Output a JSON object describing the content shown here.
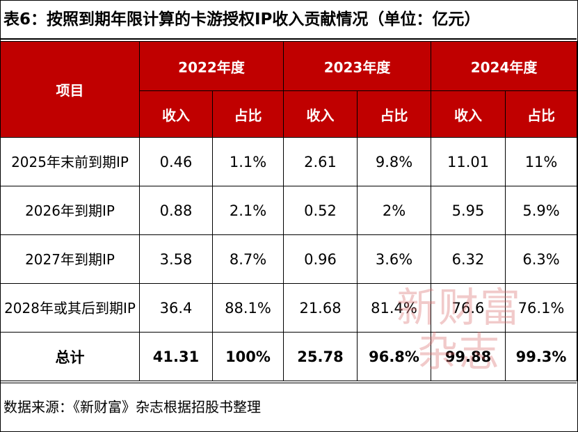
{
  "title": "表6：按照到期年限计算的卡游授权IP收入贡献情况（单位：亿元）",
  "header": {
    "item": "项目",
    "years": [
      "2022年度",
      "2023年度",
      "2024年度"
    ],
    "sub": [
      "收入",
      "占比",
      "收入",
      "占比",
      "收入",
      "占比"
    ]
  },
  "rows": [
    {
      "label": "2025年末前到期IP",
      "cells": [
        "0.46",
        "1.1%",
        "2.61",
        "9.8%",
        "11.01",
        "11%"
      ]
    },
    {
      "label": "2026年到期IP",
      "cells": [
        "0.88",
        "2.1%",
        "0.52",
        "2%",
        "5.95",
        "5.9%"
      ]
    },
    {
      "label": "2027年到期IP",
      "cells": [
        "3.58",
        "8.7%",
        "0.96",
        "3.6%",
        "6.32",
        "6.3%"
      ]
    },
    {
      "label": "2028年或其后到期IP",
      "cells": [
        "36.4",
        "88.1%",
        "21.68",
        "81.4%",
        "76.6",
        "76.1%"
      ]
    }
  ],
  "total": {
    "label": "总计",
    "cells": [
      "41.31",
      "100%",
      "25.78",
      "96.8%",
      "99.88",
      "99.3%"
    ]
  },
  "footer": "数据来源：《新财富》杂志根据招股书整理",
  "watermark": {
    "line1": "新财富",
    "line2": "杂志"
  },
  "colors": {
    "header_bg": "#c00000",
    "header_text": "#ffffff"
  }
}
